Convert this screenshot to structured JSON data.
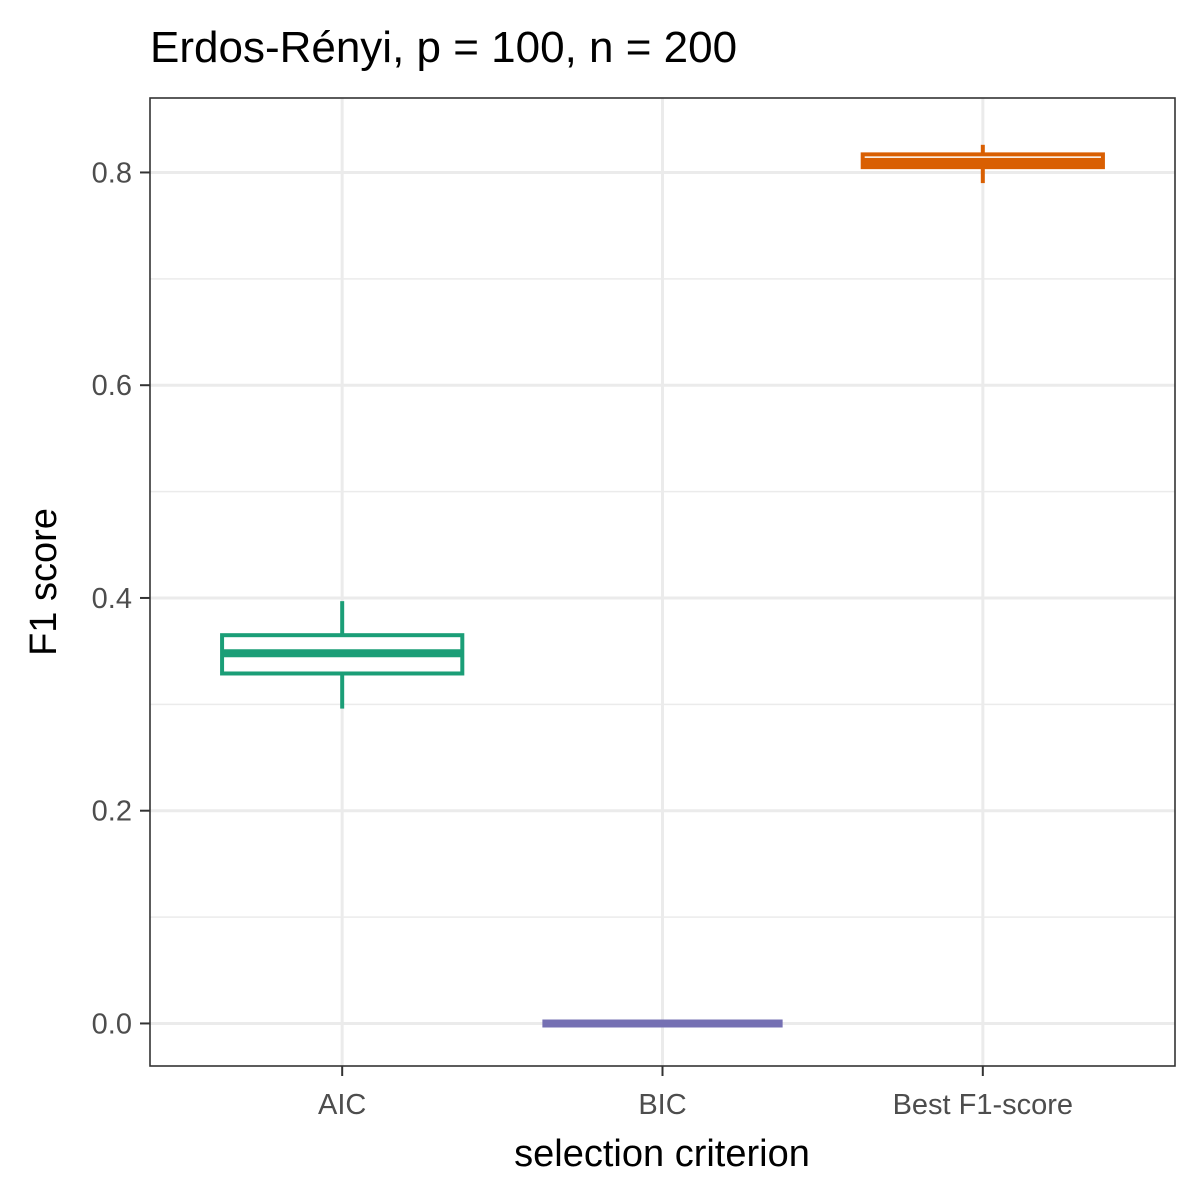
{
  "chart_data": {
    "type": "box",
    "title": "Erdos-Rényi, p = 100, n = 200",
    "xlabel": "selection criterion",
    "ylabel": "F1 score",
    "categories": [
      "AIC",
      "BIC",
      "Best F1-score"
    ],
    "ylim": [
      -0.04,
      0.87
    ],
    "yticks": [
      0.0,
      0.2,
      0.4,
      0.6,
      0.8
    ],
    "ytick_labels": [
      "0.0",
      "0.2",
      "0.4",
      "0.6",
      "0.8"
    ],
    "grid": true,
    "legend": "none",
    "boxes": [
      {
        "category": "AIC",
        "color": "#1b9e77",
        "whisker_low": 0.296,
        "q1": 0.329,
        "median": 0.348,
        "q3": 0.365,
        "whisker_high": 0.397
      },
      {
        "category": "BIC",
        "color": "#7570b3",
        "whisker_low": 0.0,
        "q1": 0.0,
        "median": 0.0,
        "q3": 0.0,
        "whisker_high": 0.0
      },
      {
        "category": "Best F1-score",
        "color": "#d95f02",
        "whisker_low": 0.79,
        "q1": 0.805,
        "median": 0.81,
        "q3": 0.817,
        "whisker_high": 0.826
      }
    ]
  }
}
